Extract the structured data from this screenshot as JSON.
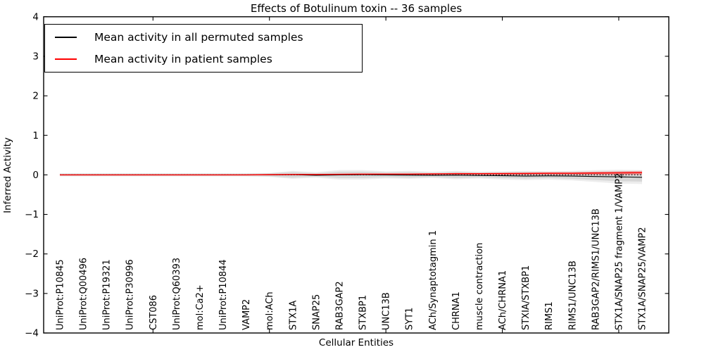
{
  "chart_data": {
    "type": "line",
    "title": "Effects of Botulinum toxin -- 36 samples",
    "xlabel": "Cellular Entities",
    "ylabel": "Inferred Activity",
    "ylim": [
      -4,
      4
    ],
    "yticks": [
      -4,
      -3,
      -2,
      -1,
      0,
      1,
      2,
      3,
      4
    ],
    "xticks": [
      5,
      10,
      15,
      20,
      25
    ],
    "grid": false,
    "legend_position": "upper-left",
    "categories": [
      "UniProt:P10845",
      "UniProt:Q00496",
      "UniProt:P19321",
      "UniProt:P30996",
      "CST086",
      "UniProt:Q60393",
      "mol:Ca2+",
      "UniProt:P10844",
      "VAMP2",
      "mol:ACh",
      "STX1A",
      "SNAP25",
      "RAB3GAP2",
      "STXBP1",
      "UNC13B",
      "SYT1",
      "ACh/Synaptotagmin 1",
      "CHRNA1",
      "muscle contraction",
      "ACh/CHRNA1",
      "STXIA/STXBP1",
      "RIMS1",
      "RIMS1/UNC13B",
      "RAB3GAP2/RIMS1/UNC13B",
      "STX1A/SNAP25 fragment 1/VAMP2",
      "STX1A/SNAP25/VAMP2"
    ],
    "series": [
      {
        "name": "Mean activity in all permuted samples",
        "color": "#000000",
        "width": 1.1,
        "values": [
          0,
          0,
          0,
          0,
          0,
          0,
          0,
          0,
          0,
          0,
          0.005,
          -0.01,
          0,
          0.005,
          0,
          -0.005,
          -0.01,
          -0.005,
          -0.015,
          -0.02,
          -0.03,
          -0.025,
          -0.03,
          -0.04,
          -0.05,
          -0.06
        ]
      },
      {
        "name": "Mean activity in patient samples",
        "color": "#ff0000",
        "width": 1.4,
        "values": [
          0,
          0,
          0,
          0,
          0,
          0,
          0,
          0,
          0,
          0.005,
          0.01,
          0.01,
          0.015,
          0.02,
          0.02,
          0.02,
          0.025,
          0.03,
          0.03,
          0.03,
          0.035,
          0.04,
          0.04,
          0.045,
          0.05,
          0.055
        ]
      }
    ],
    "bands": [
      {
        "name": "permuted-range-outer",
        "color": "#000000",
        "opacity": 0.07,
        "upper": [
          0.04,
          0.04,
          0.04,
          0.04,
          0.04,
          0.04,
          0.04,
          0.04,
          0.04,
          0.05,
          0.1,
          0.07,
          0.12,
          0.12,
          0.09,
          0.1,
          0.08,
          0.1,
          0.08,
          0.09,
          0.1,
          0.09,
          0.1,
          0.12,
          0.13,
          0.12
        ],
        "lower": [
          -0.04,
          -0.04,
          -0.04,
          -0.04,
          -0.04,
          -0.04,
          -0.04,
          -0.04,
          -0.04,
          -0.05,
          -0.1,
          -0.07,
          -0.12,
          -0.12,
          -0.09,
          -0.1,
          -0.08,
          -0.11,
          -0.09,
          -0.12,
          -0.13,
          -0.12,
          -0.14,
          -0.18,
          -0.22,
          -0.23
        ]
      },
      {
        "name": "permuted-range-inner",
        "color": "#000000",
        "opacity": 0.09,
        "upper": [
          0.03,
          0.03,
          0.03,
          0.03,
          0.03,
          0.03,
          0.03,
          0.03,
          0.03,
          0.04,
          0.07,
          0.04,
          0.08,
          0.08,
          0.06,
          0.07,
          0.05,
          0.07,
          0.05,
          0.06,
          0.07,
          0.06,
          0.07,
          0.08,
          0.09,
          0.08
        ],
        "lower": [
          -0.03,
          -0.03,
          -0.03,
          -0.03,
          -0.03,
          -0.03,
          -0.03,
          -0.03,
          -0.03,
          -0.04,
          -0.07,
          -0.04,
          -0.08,
          -0.08,
          -0.06,
          -0.07,
          -0.05,
          -0.08,
          -0.06,
          -0.08,
          -0.09,
          -0.08,
          -0.1,
          -0.13,
          -0.16,
          -0.17
        ]
      },
      {
        "name": "patient-range",
        "color": "#ff0000",
        "opacity": 0.28,
        "upper": [
          0,
          0,
          0,
          0,
          0,
          0,
          0,
          0,
          0,
          0.005,
          0.01,
          0.01,
          0.015,
          0.02,
          0.02,
          0.02,
          0.03,
          0.05,
          0.05,
          0.06,
          0.06,
          0.07,
          0.07,
          0.08,
          0.09,
          0.1
        ],
        "lower": [
          0,
          0,
          0,
          0,
          0,
          0,
          0,
          0,
          0,
          0.005,
          0.01,
          0.01,
          0.015,
          0.02,
          0.02,
          0.02,
          0.02,
          0.01,
          0.005,
          0,
          0,
          0,
          0,
          0,
          0,
          0
        ]
      }
    ],
    "zero_line": {
      "value": 0,
      "style": "dotted",
      "color": "#000000"
    }
  }
}
